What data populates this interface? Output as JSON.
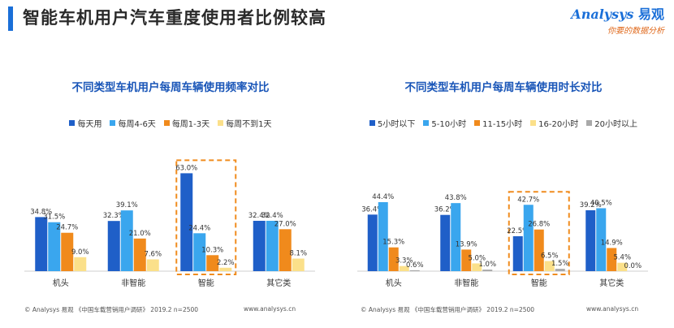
{
  "header": {
    "title": "智能车机用户汽车重度使用者比例较高",
    "brand_name_en": "Analysys",
    "brand_name_cn": "易观",
    "brand_slogan": "你要的数据分析"
  },
  "colors": {
    "accent": "#1a6fd8",
    "title_blue": "#1a56b8",
    "highlight_box": "#f08c1e"
  },
  "footer": {
    "left_source": "© Analysys 易观 《中国车载营销用户调研》 2019.2 n=2500",
    "left_url": "www.analysys.cn",
    "right_source": "© Analysys 易观 《中国车载营销用户调研》 2019.2 n=2500",
    "right_url": "www.analysys.cn"
  },
  "chart_data": [
    {
      "type": "bar",
      "title": "不同类型车机用户每周车辆使用频率对比",
      "categories": [
        "机头",
        "非智能",
        "智能",
        "其它类"
      ],
      "highlight_category": "智能",
      "legend_position": "top",
      "ylim": [
        0,
        70
      ],
      "series": [
        {
          "name": "每天用",
          "color": "#1f5fc8",
          "values": [
            34.8,
            32.3,
            63.0,
            32.4
          ]
        },
        {
          "name": "每周4-6天",
          "color": "#3aa6ee",
          "values": [
            31.5,
            39.1,
            24.4,
            32.4
          ]
        },
        {
          "name": "每周1-3天",
          "color": "#f08a1c",
          "values": [
            24.7,
            21.0,
            10.3,
            27.0
          ]
        },
        {
          "name": "每周不到1天",
          "color": "#fbe08a",
          "values": [
            9.0,
            7.6,
            2.2,
            8.1
          ]
        }
      ]
    },
    {
      "type": "bar",
      "title": "不同类型车机用户每周车辆使用时长对比",
      "categories": [
        "机头",
        "非智能",
        "智能",
        "其它类"
      ],
      "highlight_category": "智能",
      "legend_position": "top",
      "ylim": [
        0,
        70
      ],
      "series": [
        {
          "name": "5小时以下",
          "color": "#1f5fc8",
          "values": [
            36.4,
            36.2,
            22.5,
            39.2
          ]
        },
        {
          "name": "5-10小时",
          "color": "#3aa6ee",
          "values": [
            44.4,
            43.8,
            42.7,
            40.5
          ]
        },
        {
          "name": "11-15小时",
          "color": "#f08a1c",
          "values": [
            15.3,
            13.9,
            26.8,
            14.9
          ]
        },
        {
          "name": "16-20小时",
          "color": "#fbe08a",
          "values": [
            3.3,
            5.0,
            6.5,
            5.4
          ]
        },
        {
          "name": "20小时以上",
          "color": "#a9a9a9",
          "values": [
            0.6,
            1.0,
            1.5,
            0.0
          ]
        }
      ]
    }
  ]
}
